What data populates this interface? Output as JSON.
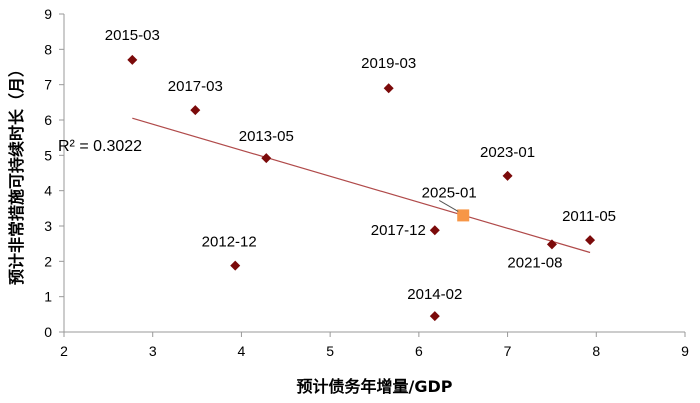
{
  "chart_data": {
    "type": "scatter",
    "xlabel": "预计债务年增量/GDP",
    "ylabel": "预计非常措施可持续时长（月）",
    "xlim": [
      2,
      9
    ],
    "ylim": [
      0,
      9
    ],
    "x_ticks": [
      "2",
      "3",
      "4",
      "5",
      "6",
      "7",
      "8",
      "9"
    ],
    "y_ticks": [
      "0",
      "1",
      "2",
      "3",
      "4",
      "5",
      "6",
      "7",
      "8",
      "9"
    ],
    "grid": false,
    "colors": {
      "point": "#7b0a0a",
      "highlight": "#f79646",
      "trendline": "#b04a4a"
    },
    "points": [
      {
        "label": "2015-03",
        "x": 2.77,
        "y": 7.7
      },
      {
        "label": "2017-03",
        "x": 3.48,
        "y": 6.28
      },
      {
        "label": "2013-05",
        "x": 4.28,
        "y": 4.92
      },
      {
        "label": "2019-03",
        "x": 5.66,
        "y": 6.9
      },
      {
        "label": "2012-12",
        "x": 3.93,
        "y": 1.88
      },
      {
        "label": "2023-01",
        "x": 7.0,
        "y": 4.42
      },
      {
        "label": "2017-12",
        "x": 6.18,
        "y": 2.88
      },
      {
        "label": "2014-02",
        "x": 6.18,
        "y": 0.45
      },
      {
        "label": "2021-08",
        "x": 7.5,
        "y": 2.48
      },
      {
        "label": "2011-05",
        "x": 7.93,
        "y": 2.6
      }
    ],
    "highlight_point": {
      "label": "2025-01",
      "x": 6.5,
      "y": 3.3
    },
    "trendline": {
      "x": [
        2.77,
        7.93
      ],
      "y": [
        6.05,
        2.25
      ],
      "r2_label": "R² = 0.3022"
    }
  }
}
